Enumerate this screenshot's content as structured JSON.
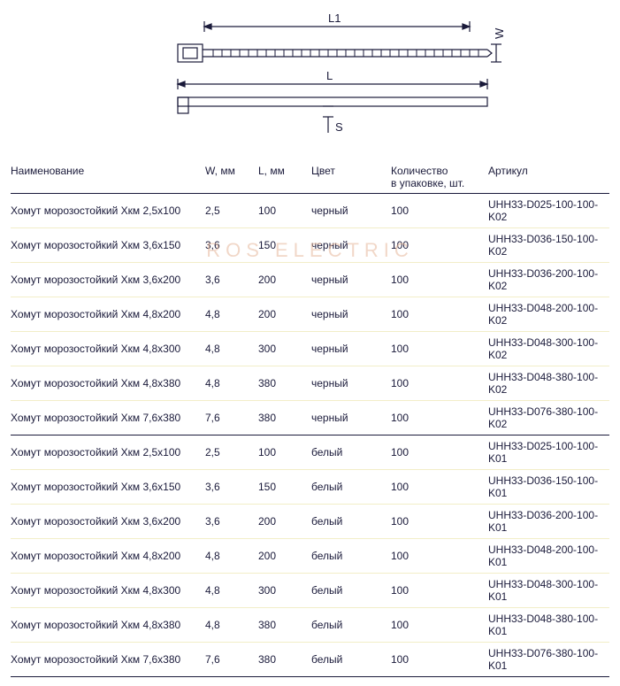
{
  "diagram": {
    "labels": {
      "L1": "L1",
      "L": "L",
      "W": "W",
      "S": "S"
    },
    "stroke": "#1a1a3a"
  },
  "watermark": "ROS  ELECTRIC",
  "table": {
    "headers": {
      "name": "Наименование",
      "w": "W, мм",
      "l": "L, мм",
      "color": "Цвет",
      "qty_line1": "Количество",
      "qty_line2": "в упаковке, шт.",
      "article": "Артикул"
    },
    "group1": [
      {
        "name": "Хомут морозостойкий Хкм 2,5х100",
        "w": "2,5",
        "l": "100",
        "color": "черный",
        "qty": "100",
        "art": "UHH33-D025-100-100-K02"
      },
      {
        "name": "Хомут морозостойкий Хкм 3,6х150",
        "w": "3,6",
        "l": "150",
        "color": "черный",
        "qty": "100",
        "art": "UHH33-D036-150-100-K02"
      },
      {
        "name": "Хомут морозостойкий Хкм 3,6х200",
        "w": "3,6",
        "l": "200",
        "color": "черный",
        "qty": "100",
        "art": "UHH33-D036-200-100-K02"
      },
      {
        "name": "Хомут морозостойкий Хкм 4,8х200",
        "w": "4,8",
        "l": "200",
        "color": "черный",
        "qty": "100",
        "art": "UHH33-D048-200-100-K02"
      },
      {
        "name": "Хомут морозостойкий Хкм 4,8х300",
        "w": "4,8",
        "l": "300",
        "color": "черный",
        "qty": "100",
        "art": "UHH33-D048-300-100-K02"
      },
      {
        "name": "Хомут морозостойкий Хкм 4,8х380",
        "w": "4,8",
        "l": "380",
        "color": "черный",
        "qty": "100",
        "art": "UHH33-D048-380-100-K02"
      },
      {
        "name": "Хомут морозостойкий Хкм 7,6х380",
        "w": "7,6",
        "l": "380",
        "color": "черный",
        "qty": "100",
        "art": "UHH33-D076-380-100-K02"
      }
    ],
    "group2": [
      {
        "name": "Хомут морозостойкий Хкм 2,5х100",
        "w": "2,5",
        "l": "100",
        "color": "белый",
        "qty": "100",
        "art": "UHH33-D025-100-100-K01"
      },
      {
        "name": "Хомут морозостойкий Хкм 3,6х150",
        "w": "3,6",
        "l": "150",
        "color": "белый",
        "qty": "100",
        "art": "UHH33-D036-150-100-K01"
      },
      {
        "name": "Хомут морозостойкий Хкм 3,6х200",
        "w": "3,6",
        "l": "200",
        "color": "белый",
        "qty": "100",
        "art": "UHH33-D036-200-100-K01"
      },
      {
        "name": "Хомут морозостойкий Хкм 4,8х200",
        "w": "4,8",
        "l": "200",
        "color": "белый",
        "qty": "100",
        "art": "UHH33-D048-200-100-K01"
      },
      {
        "name": "Хомут морозостойкий Хкм 4,8х300",
        "w": "4,8",
        "l": "300",
        "color": "белый",
        "qty": "100",
        "art": "UHH33-D048-300-100-K01"
      },
      {
        "name": "Хомут морозостойкий Хкм 4,8х380",
        "w": "4,8",
        "l": "380",
        "color": "белый",
        "qty": "100",
        "art": "UHH33-D048-380-100-K01"
      },
      {
        "name": "Хомут морозостойкий Хкм 7,6х380",
        "w": "7,6",
        "l": "380",
        "color": "белый",
        "qty": "100",
        "art": "UHH33-D076-380-100-K01"
      }
    ]
  }
}
